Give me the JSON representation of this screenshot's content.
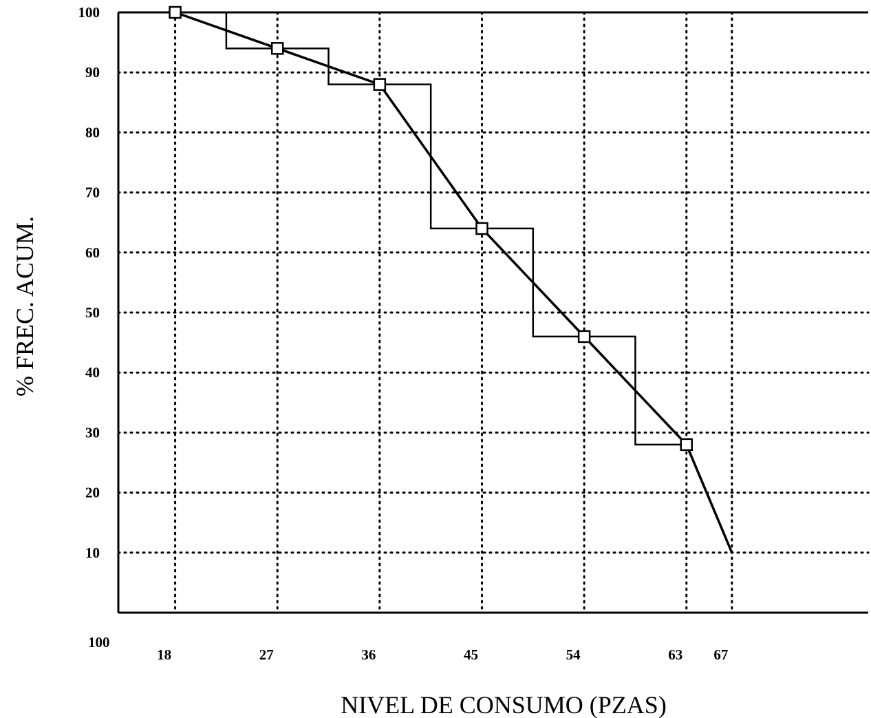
{
  "chart_data": {
    "type": "line",
    "title": "",
    "xlabel": "NIVEL DE CONSUMO (PZAS)",
    "ylabel": "% FREC. ACUM.",
    "origin_label": "100",
    "grid": true,
    "legend": "none",
    "xlim": [
      13,
      79
    ],
    "ylim": [
      0,
      100
    ],
    "x_ticks": [
      18,
      27,
      36,
      45,
      54,
      63,
      67
    ],
    "x_tick_labels": [
      "18",
      "27",
      "36",
      "45",
      "54",
      "63",
      "67"
    ],
    "y_ticks": [
      10,
      20,
      30,
      40,
      50,
      60,
      70,
      80,
      90,
      100
    ],
    "y_tick_labels": [
      "10",
      "20",
      "30",
      "40",
      "50",
      "60",
      "70",
      "80",
      "90",
      "100"
    ],
    "series": [
      {
        "type": "line",
        "markers": "square",
        "x": [
          18,
          27,
          36,
          45,
          54,
          63,
          67
        ],
        "y": [
          100,
          94,
          88,
          64,
          46,
          28,
          10
        ]
      },
      {
        "type": "step",
        "x": [
          18,
          22.5,
          22.5,
          31.5,
          31.5,
          40.5,
          40.5,
          49.5,
          49.5,
          58.5,
          58.5,
          63
        ],
        "y": [
          100,
          100,
          94,
          94,
          88,
          88,
          64,
          64,
          46,
          46,
          28,
          28
        ]
      }
    ]
  }
}
